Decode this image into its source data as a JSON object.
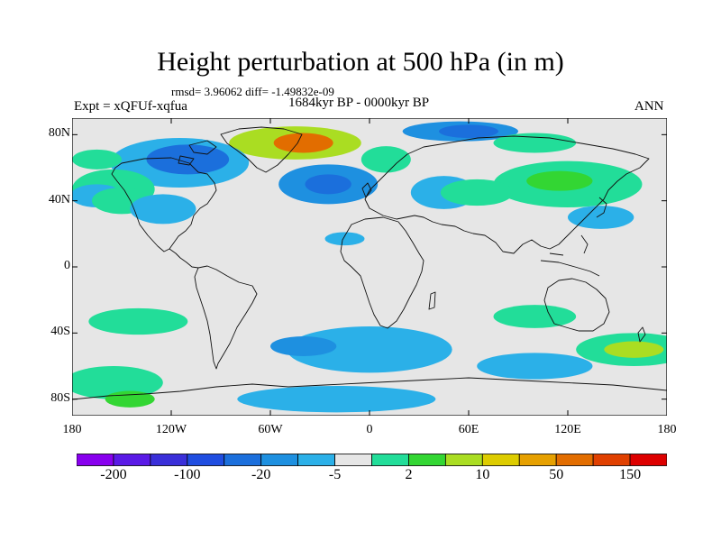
{
  "title": "Height perturbation at 500 hPa (in m)",
  "stats": "rmsd= 3.96062 diff= -1.49832e-09",
  "expt_label": "Expt = xQFUf-xqfua",
  "period_label": "1684kyr BP - 0000kyr BP",
  "season_label": "ANN",
  "map": {
    "projection": "cylindrical-equidistant",
    "lon_range": [
      -180,
      180
    ],
    "lat_range": [
      -90,
      90
    ],
    "y_ticks": [
      {
        "lat": 80,
        "label": "80N"
      },
      {
        "lat": 40,
        "label": "40N"
      },
      {
        "lat": 0,
        "label": "0"
      },
      {
        "lat": -40,
        "label": "40S"
      },
      {
        "lat": -80,
        "label": "80S"
      }
    ],
    "x_ticks": [
      {
        "lon": -180,
        "label": "180"
      },
      {
        "lon": -120,
        "label": "120W"
      },
      {
        "lon": -60,
        "label": "60W"
      },
      {
        "lon": 0,
        "label": "0"
      },
      {
        "lon": 60,
        "label": "60E"
      },
      {
        "lon": 120,
        "label": "120E"
      },
      {
        "lon": 180,
        "label": "180"
      }
    ],
    "background_color": "#e6e6e6",
    "anomaly_regions": [
      {
        "name": "greenland-high",
        "lon": -45,
        "lat": 75,
        "rx": 40,
        "ry": 10,
        "bin": 10
      },
      {
        "name": "greenland-high-core",
        "lon": -40,
        "lat": 75,
        "rx": 18,
        "ry": 6,
        "bin": 13
      },
      {
        "name": "north-america-low",
        "lon": -115,
        "lat": 63,
        "rx": 42,
        "ry": 15,
        "bin": 6
      },
      {
        "name": "north-america-low-core",
        "lon": -110,
        "lat": 65,
        "rx": 25,
        "ry": 9,
        "bin": 4
      },
      {
        "name": "arctic-low-east",
        "lon": 55,
        "lat": 82,
        "rx": 35,
        "ry": 6,
        "bin": 5
      },
      {
        "name": "arctic-low-east-core",
        "lon": 60,
        "lat": 82,
        "rx": 18,
        "ry": 4,
        "bin": 4
      },
      {
        "name": "north-atlantic-low",
        "lon": -25,
        "lat": 50,
        "rx": 30,
        "ry": 12,
        "bin": 5
      },
      {
        "name": "north-atlantic-low-core",
        "lon": -25,
        "lat": 50,
        "rx": 14,
        "ry": 6,
        "bin": 4
      },
      {
        "name": "europe-low",
        "lon": 45,
        "lat": 45,
        "rx": 20,
        "ry": 10,
        "bin": 6
      },
      {
        "name": "east-asia-high",
        "lon": 120,
        "lat": 50,
        "rx": 45,
        "ry": 14,
        "bin": 8
      },
      {
        "name": "east-asia-high-core",
        "lon": 115,
        "lat": 52,
        "rx": 20,
        "ry": 6,
        "bin": 9
      },
      {
        "name": "arctic-high-east",
        "lon": 100,
        "lat": 75,
        "rx": 25,
        "ry": 6,
        "bin": 8
      },
      {
        "name": "central-asia-high",
        "lon": 65,
        "lat": 45,
        "rx": 22,
        "ry": 8,
        "bin": 8
      },
      {
        "name": "west-pacific-low",
        "lon": 140,
        "lat": 30,
        "rx": 20,
        "ry": 7,
        "bin": 6
      },
      {
        "name": "north-pacific-high",
        "lon": -155,
        "lat": 47,
        "rx": 25,
        "ry": 12,
        "bin": 8
      },
      {
        "name": "north-pacific-low",
        "lon": -165,
        "lat": 43,
        "rx": 16,
        "ry": 7,
        "bin": 6
      },
      {
        "name": "north-pacific-high-east",
        "lon": -150,
        "lat": 40,
        "rx": 18,
        "ry": 8,
        "bin": 8
      },
      {
        "name": "northeast-pacific-low",
        "lon": -125,
        "lat": 35,
        "rx": 20,
        "ry": 9,
        "bin": 6
      },
      {
        "name": "alaska-high",
        "lon": -165,
        "lat": 65,
        "rx": 15,
        "ry": 6,
        "bin": 8
      },
      {
        "name": "north-europe-high",
        "lon": 10,
        "lat": 65,
        "rx": 15,
        "ry": 8,
        "bin": 8
      },
      {
        "name": "caribbean-low",
        "lon": -15,
        "lat": 17,
        "rx": 12,
        "ry": 4,
        "bin": 6
      },
      {
        "name": "south-pacific-high",
        "lon": -140,
        "lat": -33,
        "rx": 30,
        "ry": 8,
        "bin": 8
      },
      {
        "name": "south-indian-high",
        "lon": 100,
        "lat": -30,
        "rx": 25,
        "ry": 7,
        "bin": 8
      },
      {
        "name": "south-pacific-high-east",
        "lon": 160,
        "lat": -50,
        "rx": 35,
        "ry": 10,
        "bin": 8
      },
      {
        "name": "south-pacific-high-east-core",
        "lon": 160,
        "lat": -50,
        "rx": 18,
        "ry": 5,
        "bin": 10
      },
      {
        "name": "south-atlantic-low",
        "lon": 0,
        "lat": -50,
        "rx": 50,
        "ry": 14,
        "bin": 6
      },
      {
        "name": "south-atlantic-low-core",
        "lon": -40,
        "lat": -48,
        "rx": 20,
        "ry": 6,
        "bin": 5
      },
      {
        "name": "south-indian-low",
        "lon": 100,
        "lat": -60,
        "rx": 35,
        "ry": 8,
        "bin": 6
      },
      {
        "name": "antarctic-low",
        "lon": -20,
        "lat": -80,
        "rx": 60,
        "ry": 8,
        "bin": 6
      },
      {
        "name": "amundsen-high",
        "lon": -155,
        "lat": -70,
        "rx": 30,
        "ry": 10,
        "bin": 8
      },
      {
        "name": "amundsen-high-core",
        "lon": -145,
        "lat": -80,
        "rx": 15,
        "ry": 5,
        "bin": 9
      }
    ]
  },
  "colorbar": {
    "colors": [
      "#8800ee",
      "#5a1ae6",
      "#3a2fd9",
      "#1f4de0",
      "#1b6fdc",
      "#1e90e0",
      "#2bb0e8",
      "#e6e6e6",
      "#22dd99",
      "#33d633",
      "#aadd22",
      "#ddcc00",
      "#e6a000",
      "#e26d00",
      "#e04000",
      "#dd0000"
    ],
    "tick_labels": [
      "-200",
      "-100",
      "-20",
      "-5",
      "2",
      "10",
      "50",
      "150"
    ]
  }
}
